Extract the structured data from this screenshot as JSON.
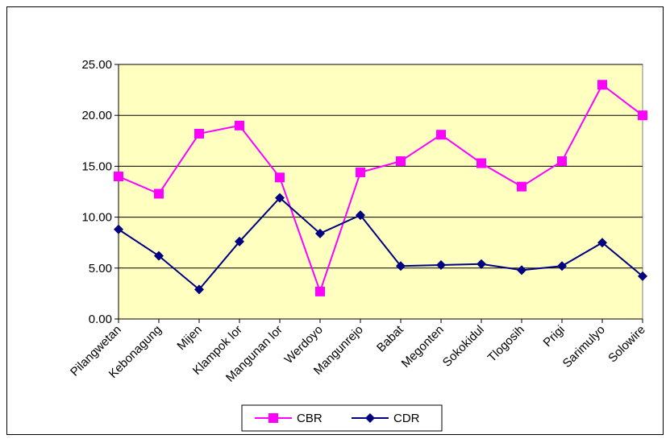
{
  "chart_data": {
    "type": "line",
    "categories": [
      "Pilangwetan",
      "Kebonagung",
      "Mijen",
      "Klampok lor",
      "Mangunan lor",
      "Werdoyo",
      "Mangunrejo",
      "Babat",
      "Megonten",
      "Sokokidul",
      "Tlogosih",
      "Prigi",
      "Sarimulyo",
      "Solowire"
    ],
    "series": [
      {
        "name": "CBR",
        "color": "#ff00ff",
        "marker": "square",
        "values": [
          14.0,
          12.3,
          18.2,
          19.0,
          13.9,
          2.7,
          14.4,
          15.5,
          18.1,
          15.3,
          13.0,
          15.5,
          23.0,
          20.0
        ]
      },
      {
        "name": "CDR",
        "color": "#000080",
        "marker": "diamond",
        "values": [
          8.8,
          6.2,
          2.9,
          7.6,
          11.9,
          8.4,
          10.2,
          5.2,
          5.3,
          5.4,
          4.8,
          5.2,
          7.5,
          4.2
        ]
      }
    ],
    "ylim": [
      0,
      25
    ],
    "yticks": [
      {
        "value": 0,
        "label": "0.00"
      },
      {
        "value": 5,
        "label": "5.00"
      },
      {
        "value": 10,
        "label": "10.00"
      },
      {
        "value": 15,
        "label": "15.00"
      },
      {
        "value": 20,
        "label": "20.00"
      },
      {
        "value": 25,
        "label": "25.00"
      }
    ],
    "grid": true,
    "legend": "bottom"
  }
}
